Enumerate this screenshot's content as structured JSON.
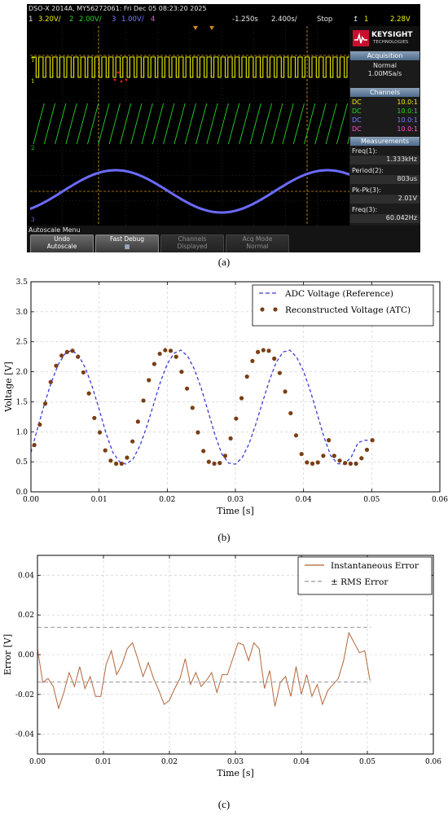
{
  "scope": {
    "header_line": "DSO-X 2014A, MY56272061: Fri Dec 05 08:23:20 2025",
    "ch1_num": "1",
    "ch1_scale": "3.20V/",
    "ch2_num": "2",
    "ch2_scale": "2.00V/",
    "ch3_num": "3",
    "ch3_scale": "1.00V/",
    "ch4_num": "4",
    "time_offset": "-1.250s",
    "time_scale": "2.400s/",
    "run_state": "Stop",
    "trig_icon": "trigger-edge-icon",
    "trig_src": "1",
    "trig_level": "2.28V",
    "logo_text": "KEYSIGHT",
    "logo_sub": "TECHNOLOGIES",
    "acq_header": "Acquisition",
    "acq_mode": "Normal",
    "acq_rate": "1.00MSa/s",
    "channels_header": "Channels",
    "channels": [
      {
        "coupling": "DC",
        "probe": "10.0:1",
        "color": "#f0f000"
      },
      {
        "coupling": "DC",
        "probe": "10.0:1",
        "color": "#27d427"
      },
      {
        "coupling": "DC",
        "probe": "10.0:1",
        "color": "#7b7bff"
      },
      {
        "coupling": "DC",
        "probe": "10.0:1",
        "color": "#ff55cc"
      }
    ],
    "meas_header": "Measurements",
    "meas": [
      {
        "label": "Freq(1):",
        "value": "1.333kHz"
      },
      {
        "label": "Period(2):",
        "value": "803us"
      },
      {
        "label": "Pk-Pk(3):",
        "value": "2.01V"
      },
      {
        "label": "Freq(3):",
        "value": "60.042Hz"
      }
    ],
    "softkey_menu": "Autoscale Menu",
    "softkeys": [
      {
        "line1": "Undo",
        "line2": "Autoscale"
      },
      {
        "line1": "Fast Debug",
        "line2": "■"
      },
      {
        "line1": "Channels",
        "line2": "Displayed"
      },
      {
        "line1": "Acq Mode",
        "line2": "Normal"
      }
    ]
  },
  "captions": {
    "a": "(a)",
    "b": "(b)",
    "c": "(c)"
  },
  "chart_data": [
    {
      "type": "line",
      "title": "",
      "xlabel": "Time [s]",
      "ylabel": "Voltage [V]",
      "xlim": [
        0,
        0.06
      ],
      "ylim": [
        0,
        3.5
      ],
      "xticks": [
        0,
        0.01,
        0.02,
        0.03,
        0.04,
        0.05,
        0.06
      ],
      "xtick_labels": [
        "0.00",
        "0.01",
        "0.02",
        "0.03",
        "0.04",
        "0.05",
        "0.06"
      ],
      "yticks": [
        0,
        0.5,
        1.0,
        1.5,
        2.0,
        2.5,
        3.0,
        3.5
      ],
      "ytick_labels": [
        "0.0",
        "0.5",
        "1.0",
        "1.5",
        "2.0",
        "2.5",
        "3.0",
        "3.5"
      ],
      "grid": true,
      "legend_position": "top-right",
      "series": [
        {
          "name": "ADC Voltage (Reference)",
          "style": "dashed",
          "color": "#3b3bd6",
          "x": [
            0.0,
            0.001,
            0.002,
            0.003,
            0.004,
            0.005,
            0.006,
            0.007,
            0.008,
            0.009,
            0.01,
            0.011,
            0.012,
            0.013,
            0.014,
            0.015,
            0.016,
            0.017,
            0.018,
            0.019,
            0.02,
            0.021,
            0.022,
            0.023,
            0.024,
            0.025,
            0.026,
            0.027,
            0.028,
            0.029,
            0.03,
            0.031,
            0.032,
            0.033,
            0.034,
            0.035,
            0.036,
            0.037,
            0.038,
            0.039,
            0.04,
            0.041,
            0.042,
            0.043,
            0.044,
            0.045,
            0.046,
            0.047,
            0.048,
            0.049,
            0.05,
            0.0505
          ],
          "y": [
            0.66,
            1.07,
            1.47,
            1.83,
            2.12,
            2.3,
            2.36,
            2.27,
            2.06,
            1.75,
            1.38,
            0.98,
            0.66,
            0.5,
            0.46,
            0.55,
            0.77,
            1.09,
            1.46,
            1.83,
            2.13,
            2.31,
            2.36,
            2.26,
            2.04,
            1.72,
            1.34,
            0.95,
            0.63,
            0.48,
            0.46,
            0.57,
            0.8,
            1.13,
            1.5,
            1.86,
            2.16,
            2.33,
            2.36,
            2.24,
            2.01,
            1.68,
            1.3,
            0.91,
            0.6,
            0.47,
            0.46,
            0.58,
            0.82,
            0.86,
            0.86,
            0.86
          ]
        },
        {
          "name": "Reconstructed Voltage (ATC)",
          "style": "dots",
          "color": "#7a3e14",
          "x": [
            0.0005,
            0.0013,
            0.0021,
            0.0029,
            0.0037,
            0.0045,
            0.0053,
            0.0061,
            0.0069,
            0.0077,
            0.0085,
            0.0093,
            0.0101,
            0.0109,
            0.0117,
            0.0125,
            0.0133,
            0.0141,
            0.0149,
            0.0157,
            0.0165,
            0.0173,
            0.0181,
            0.0189,
            0.0197,
            0.0205,
            0.0213,
            0.0221,
            0.0229,
            0.0237,
            0.0245,
            0.0253,
            0.0261,
            0.0269,
            0.0277,
            0.0285,
            0.0293,
            0.0301,
            0.0309,
            0.0317,
            0.0325,
            0.0333,
            0.0341,
            0.0349,
            0.0357,
            0.0365,
            0.0373,
            0.0381,
            0.0389,
            0.0397,
            0.0405,
            0.0413,
            0.0421,
            0.0429,
            0.0437,
            0.0445,
            0.0453,
            0.0461,
            0.0469,
            0.0477,
            0.0485,
            0.0493,
            0.0501
          ],
          "y": [
            0.78,
            1.12,
            1.47,
            1.83,
            2.1,
            2.27,
            2.33,
            2.35,
            2.25,
            1.99,
            1.64,
            1.23,
            0.99,
            0.69,
            0.52,
            0.47,
            0.47,
            0.57,
            0.84,
            1.17,
            1.52,
            1.86,
            2.13,
            2.3,
            2.36,
            2.35,
            2.25,
            2.0,
            1.72,
            1.4,
            0.99,
            0.68,
            0.5,
            0.47,
            0.48,
            0.6,
            0.89,
            1.22,
            1.56,
            1.92,
            2.18,
            2.33,
            2.36,
            2.35,
            2.22,
            1.98,
            1.67,
            1.31,
            0.94,
            0.63,
            0.49,
            0.47,
            0.49,
            0.6,
            0.86,
            0.6,
            0.52,
            0.48,
            0.47,
            0.47,
            0.56,
            0.7,
            0.86
          ]
        }
      ]
    },
    {
      "type": "line",
      "title": "",
      "xlabel": "Time [s]",
      "ylabel": "Error [V]",
      "xlim": [
        0,
        0.06
      ],
      "ylim": [
        -0.05,
        0.05
      ],
      "xticks": [
        0,
        0.01,
        0.02,
        0.03,
        0.04,
        0.05,
        0.06
      ],
      "xtick_labels": [
        "0.00",
        "0.01",
        "0.02",
        "0.03",
        "0.04",
        "0.05",
        "0.06"
      ],
      "yticks": [
        -0.04,
        -0.02,
        0.0,
        0.02,
        0.04
      ],
      "ytick_labels": [
        "-0.04",
        "-0.02",
        "0.00",
        "0.02",
        "0.04"
      ],
      "grid": true,
      "legend_position": "top-right",
      "series": [
        {
          "name": "Instantaneous Error",
          "style": "solid",
          "color": "#b4653a",
          "x": [
            0.0,
            0.0008,
            0.0016,
            0.0024,
            0.0032,
            0.004,
            0.0048,
            0.0056,
            0.0064,
            0.0072,
            0.008,
            0.0088,
            0.0096,
            0.0104,
            0.0112,
            0.012,
            0.0128,
            0.0136,
            0.0144,
            0.0152,
            0.016,
            0.0168,
            0.0176,
            0.0184,
            0.0192,
            0.02,
            0.0208,
            0.0216,
            0.0224,
            0.0232,
            0.024,
            0.0248,
            0.0256,
            0.0264,
            0.0272,
            0.028,
            0.0288,
            0.0296,
            0.0304,
            0.0312,
            0.032,
            0.0328,
            0.0336,
            0.0344,
            0.0352,
            0.036,
            0.0368,
            0.0376,
            0.0384,
            0.0392,
            0.04,
            0.0408,
            0.0416,
            0.0424,
            0.0432,
            0.044,
            0.0448,
            0.0456,
            0.0464,
            0.0472,
            0.048,
            0.0488,
            0.0496,
            0.0504
          ],
          "y": [
            0.003,
            -0.014,
            -0.012,
            -0.016,
            -0.027,
            -0.019,
            -0.009,
            -0.016,
            -0.006,
            -0.017,
            -0.011,
            -0.021,
            -0.021,
            -0.005,
            0.002,
            -0.01,
            -0.005,
            0.003,
            0.006,
            -0.002,
            -0.011,
            -0.004,
            -0.012,
            -0.018,
            -0.025,
            -0.023,
            -0.017,
            -0.012,
            -0.002,
            -0.015,
            -0.009,
            -0.016,
            -0.013,
            -0.009,
            -0.019,
            -0.01,
            -0.01,
            -0.002,
            0.006,
            0.005,
            -0.003,
            0.006,
            0.003,
            -0.017,
            -0.008,
            -0.026,
            -0.014,
            -0.011,
            -0.021,
            -0.006,
            -0.02,
            -0.01,
            -0.021,
            -0.015,
            -0.025,
            -0.018,
            -0.015,
            -0.012,
            -0.003,
            0.011,
            0.006,
            0.001,
            0.002,
            -0.013
          ]
        },
        {
          "name": "± RMS Error",
          "style": "dashed",
          "color": "#999999",
          "x": [
            0.0,
            0.0505
          ],
          "upper": 0.0138,
          "lower": -0.0138
        }
      ]
    }
  ]
}
